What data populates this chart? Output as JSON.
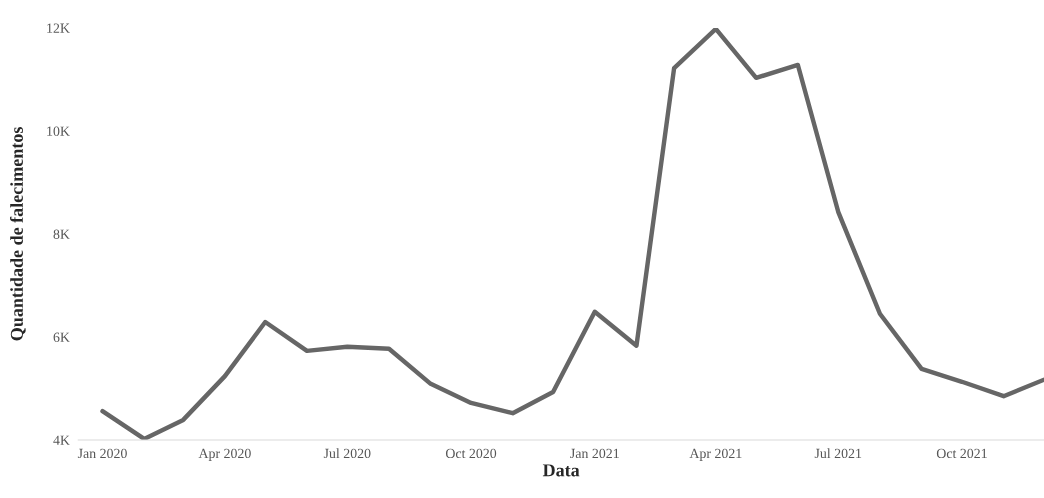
{
  "chart_data": {
    "type": "line",
    "xlabel": "Data",
    "ylabel": "Quantidade de falecimentos",
    "x": [
      "2020-01",
      "2020-02",
      "2020-03",
      "2020-04",
      "2020-05",
      "2020-06",
      "2020-07",
      "2020-08",
      "2020-09",
      "2020-10",
      "2020-11",
      "2020-12",
      "2021-01",
      "2021-02",
      "2021-03",
      "2021-04",
      "2021-05",
      "2021-06",
      "2021-07",
      "2021-08",
      "2021-09",
      "2021-10",
      "2021-11",
      "2021-12"
    ],
    "series": [
      {
        "color": "#666666",
        "values": [
          4560,
          4020,
          4390,
          5240,
          6290,
          5730,
          5810,
          5770,
          5090,
          4720,
          4520,
          4930,
          6490,
          5830,
          11220,
          11980,
          11030,
          11280,
          8430,
          6450,
          5380,
          5130,
          4850,
          5170
        ]
      }
    ],
    "xticks": [
      {
        "value": "2020-01",
        "label": "Jan 2020"
      },
      {
        "value": "2020-04",
        "label": "Apr 2020"
      },
      {
        "value": "2020-07",
        "label": "Jul 2020"
      },
      {
        "value": "2020-10",
        "label": "Oct 2020"
      },
      {
        "value": "2021-01",
        "label": "Jan 2021"
      },
      {
        "value": "2021-04",
        "label": "Apr 2021"
      },
      {
        "value": "2021-07",
        "label": "Jul 2021"
      },
      {
        "value": "2021-10",
        "label": "Oct 2021"
      }
    ],
    "xlim": [
      "2019-12-14",
      "2021-12-01"
    ],
    "ylim": [
      4000,
      12000
    ],
    "yticks": [
      {
        "value": 4000,
        "label": "4K"
      },
      {
        "value": 6000,
        "label": "6K"
      },
      {
        "value": 8000,
        "label": "8K"
      },
      {
        "value": 10000,
        "label": "10K"
      },
      {
        "value": 12000,
        "label": "12K"
      }
    ],
    "grid": false,
    "legend": false,
    "marker": "none",
    "line_style": "solid"
  }
}
